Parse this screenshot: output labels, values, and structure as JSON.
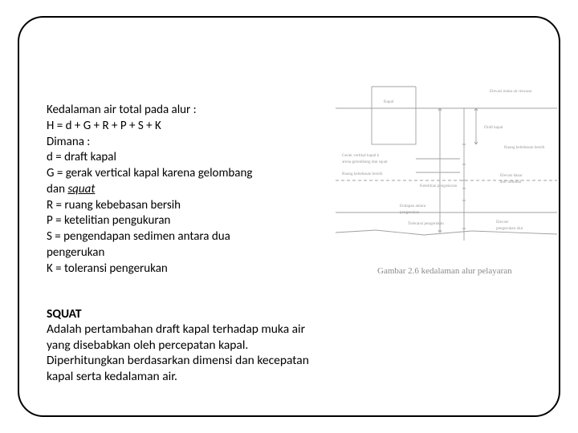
{
  "text": {
    "line1": "Kedalaman air total pada alur :",
    "line2": "H = d + G + R + P + S + K",
    "line3": "Dimana :",
    "line4": "d = draft kapal",
    "line5": "G = gerak vertical kapal karena gelombang",
    "line6_prefix": "dan ",
    "line6_italic": "squat",
    "line7": "R = ruang kebebasan bersih",
    "line8": "P = ketelitian pengukuran",
    "line9": "S = pengendapan sedimen antara dua",
    "line10": "pengerukan",
    "line11": "K = toleransi pengerukan"
  },
  "squat": {
    "title": "SQUAT",
    "p1": "Adalah pertambahan draft kapal terhadap muka air",
    "p2": "yang disebabkan oleh percepatan kapal.",
    "p3": "Diperhitungkan berdasarkan dimensi dan kecepatan",
    "p4": "kapal serta kedalaman air."
  },
  "diagram": {
    "caption": "Gambar 2.6 kedalaman alur pelayaran",
    "labels": {
      "elev_air": "Elevasi muka air rencana",
      "kapal": "Kapal",
      "draft": "Draft kapal",
      "gerak": "Gerak vertikal kapal karena gelombang dan squat",
      "ruang": "Ruang kebebasan bersih",
      "ketelitian": "Ketelitian pengukuran",
      "endapan": "Endapan antara pengerukan",
      "toleransi": "Toleransi pengerukan",
      "elev_dasar": "Elevasi dasar alur nominal",
      "elev_alur": "Elevasi pengerukan alur"
    },
    "colors": {
      "line": "#a0a0a0",
      "text": "#9a9a9a",
      "bg": "#ffffff"
    },
    "stroke_width": 0.9,
    "font_size": 5.2
  }
}
